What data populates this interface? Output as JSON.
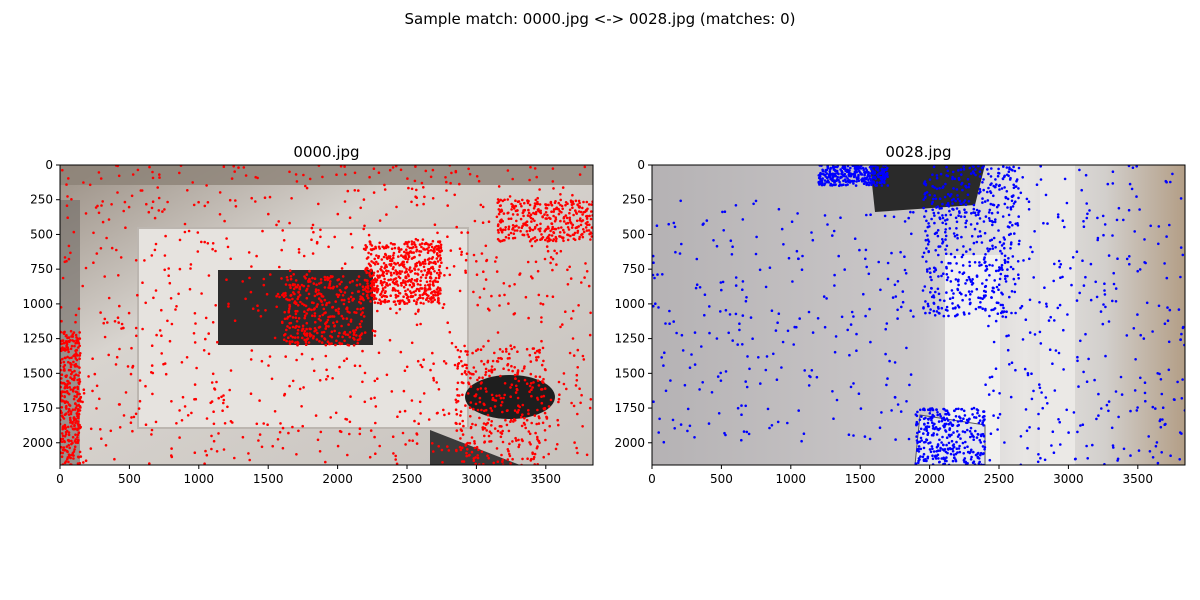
{
  "figure": {
    "suptitle": "Sample match: 0000.jpg <-> 0028.jpg (matches: 0)"
  },
  "chart_data": [
    {
      "type": "scatter",
      "title": "0000.jpg",
      "xlabel": "",
      "ylabel": "",
      "xlim": [
        0,
        3840
      ],
      "ylim": [
        2160,
        0
      ],
      "xticks": [
        0,
        500,
        1000,
        1500,
        2000,
        2500,
        3000,
        3500
      ],
      "yticks": [
        0,
        250,
        500,
        750,
        1000,
        1250,
        1500,
        1750,
        2000
      ],
      "point_color": "#ff0000",
      "background_image": "photo of a room interior viewed from above (ceiling with dark rectangular light, walls, chair at lower right)",
      "keypoint_regions": [
        {
          "x": [
            0,
            3840
          ],
          "y": [
            0,
            2160
          ],
          "density": "medium"
        },
        {
          "x": [
            2200,
            2750
          ],
          "y": [
            550,
            1000
          ],
          "density": "very high"
        },
        {
          "x": [
            1600,
            2200
          ],
          "y": [
            800,
            1300
          ],
          "density": "high"
        },
        {
          "x": [
            2850,
            3500
          ],
          "y": [
            1300,
            2160
          ],
          "density": "high"
        },
        {
          "x": [
            0,
            150
          ],
          "y": [
            1200,
            2160
          ],
          "density": "high"
        },
        {
          "x": [
            3150,
            3840
          ],
          "y": [
            250,
            550
          ],
          "density": "high"
        }
      ]
    },
    {
      "type": "scatter",
      "title": "0028.jpg",
      "xlabel": "",
      "ylabel": "",
      "xlim": [
        0,
        3840
      ],
      "ylim": [
        2160,
        0
      ],
      "xticks": [
        0,
        500,
        1000,
        1500,
        2000,
        2500,
        3000,
        3500
      ],
      "yticks": [
        0,
        250,
        500,
        750,
        1000,
        1250,
        1500,
        1750,
        2000
      ],
      "point_color": "#0000ff",
      "background_image": "photo of a grey wall with a white door frame and wooden surface on the right",
      "keypoint_regions": [
        {
          "x": [
            0,
            1900
          ],
          "y": [
            250,
            2000
          ],
          "density": "sparse"
        },
        {
          "x": [
            1950,
            2650
          ],
          "y": [
            0,
            1100
          ],
          "density": "very high"
        },
        {
          "x": [
            1200,
            1700
          ],
          "y": [
            0,
            150
          ],
          "density": "high"
        },
        {
          "x": [
            2400,
            3840
          ],
          "y": [
            0,
            2160
          ],
          "density": "high"
        },
        {
          "x": [
            1900,
            2400
          ],
          "y": [
            1750,
            2160
          ],
          "density": "high"
        }
      ]
    }
  ]
}
